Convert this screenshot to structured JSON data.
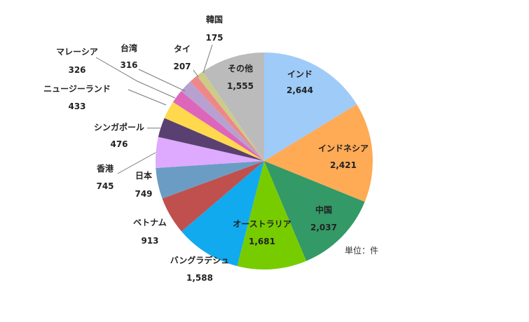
{
  "chart_data": {
    "type": "pie",
    "unit_note": "単位：件",
    "slices": [
      {
        "label": "インド",
        "value": 2644,
        "value_text": "2,644",
        "color": "#9ECBF8"
      },
      {
        "label": "インドネシア",
        "value": 2421,
        "value_text": "2,421",
        "color": "#FFAA55"
      },
      {
        "label": "中国",
        "value": 2037,
        "value_text": "2,037",
        "color": "#339966"
      },
      {
        "label": "オーストラリア",
        "value": 1681,
        "value_text": "1,681",
        "color": "#77CC00"
      },
      {
        "label": "バングラデシュ",
        "value": 1588,
        "value_text": "1,588",
        "color": "#11AAEE"
      },
      {
        "label": "ベトナム",
        "value": 913,
        "value_text": "913",
        "color": "#C0504D"
      },
      {
        "label": "日本",
        "value": 749,
        "value_text": "749",
        "color": "#6B9DC4"
      },
      {
        "label": "香港",
        "value": 745,
        "value_text": "745",
        "color": "#DDAAFF"
      },
      {
        "label": "シンガポール",
        "value": 476,
        "value_text": "476",
        "color": "#5A4070"
      },
      {
        "label": "ニュージーランド",
        "value": 433,
        "value_text": "433",
        "color": "#FFD84D"
      },
      {
        "label": "マレーシア",
        "value": 326,
        "value_text": "326",
        "color": "#DD66BB"
      },
      {
        "label": "台湾",
        "value": 316,
        "value_text": "316",
        "color": "#B8A0D0"
      },
      {
        "label": "タイ",
        "value": 207,
        "value_text": "207",
        "color": "#EE8888"
      },
      {
        "label": "韓国",
        "value": 175,
        "value_text": "175",
        "color": "#CCCC88"
      },
      {
        "label": "その他",
        "value": 1555,
        "value_text": "1,555",
        "color": "#BBBBBB"
      }
    ]
  }
}
